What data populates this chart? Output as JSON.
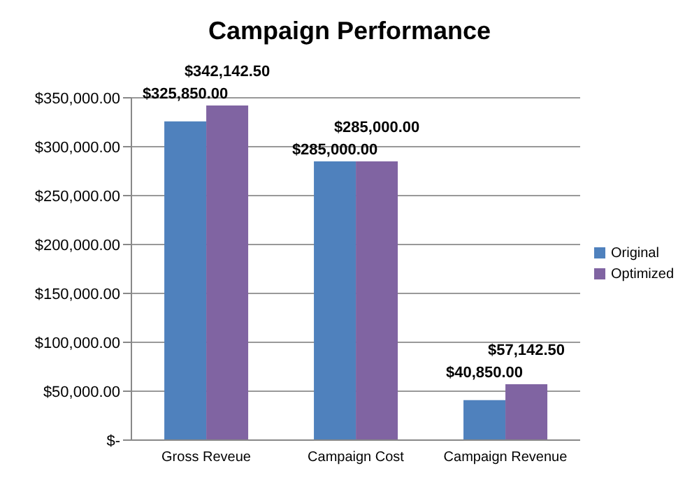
{
  "chart_data": {
    "type": "bar",
    "title": "Campaign Performance",
    "categories": [
      "Gross Reveue",
      "Campaign Cost",
      "Campaign Revenue"
    ],
    "series": [
      {
        "name": "Original",
        "color": "#4f81bd",
        "values": [
          325850,
          285000,
          40850
        ],
        "value_labels": [
          "$325,850.00",
          "$285,000.00",
          "$40,850.00"
        ]
      },
      {
        "name": "Optimized",
        "color": "#8064a2",
        "values": [
          342142.5,
          285000,
          57142.5
        ],
        "value_labels": [
          "$342,142.50",
          "$285,000.00",
          "$57,142.50"
        ]
      }
    ],
    "ylim": [
      0,
      350000
    ],
    "yticks": [
      {
        "value": 0,
        "label": "$-"
      },
      {
        "value": 50000,
        "label": "$50,000.00"
      },
      {
        "value": 100000,
        "label": "$100,000.00"
      },
      {
        "value": 150000,
        "label": "$150,000.00"
      },
      {
        "value": 200000,
        "label": "$200,000.00"
      },
      {
        "value": 250000,
        "label": "$250,000.00"
      },
      {
        "value": 300000,
        "label": "$300,000.00"
      },
      {
        "value": 350000,
        "label": "$350,000.00"
      }
    ],
    "grid": "y",
    "legend": "right"
  }
}
